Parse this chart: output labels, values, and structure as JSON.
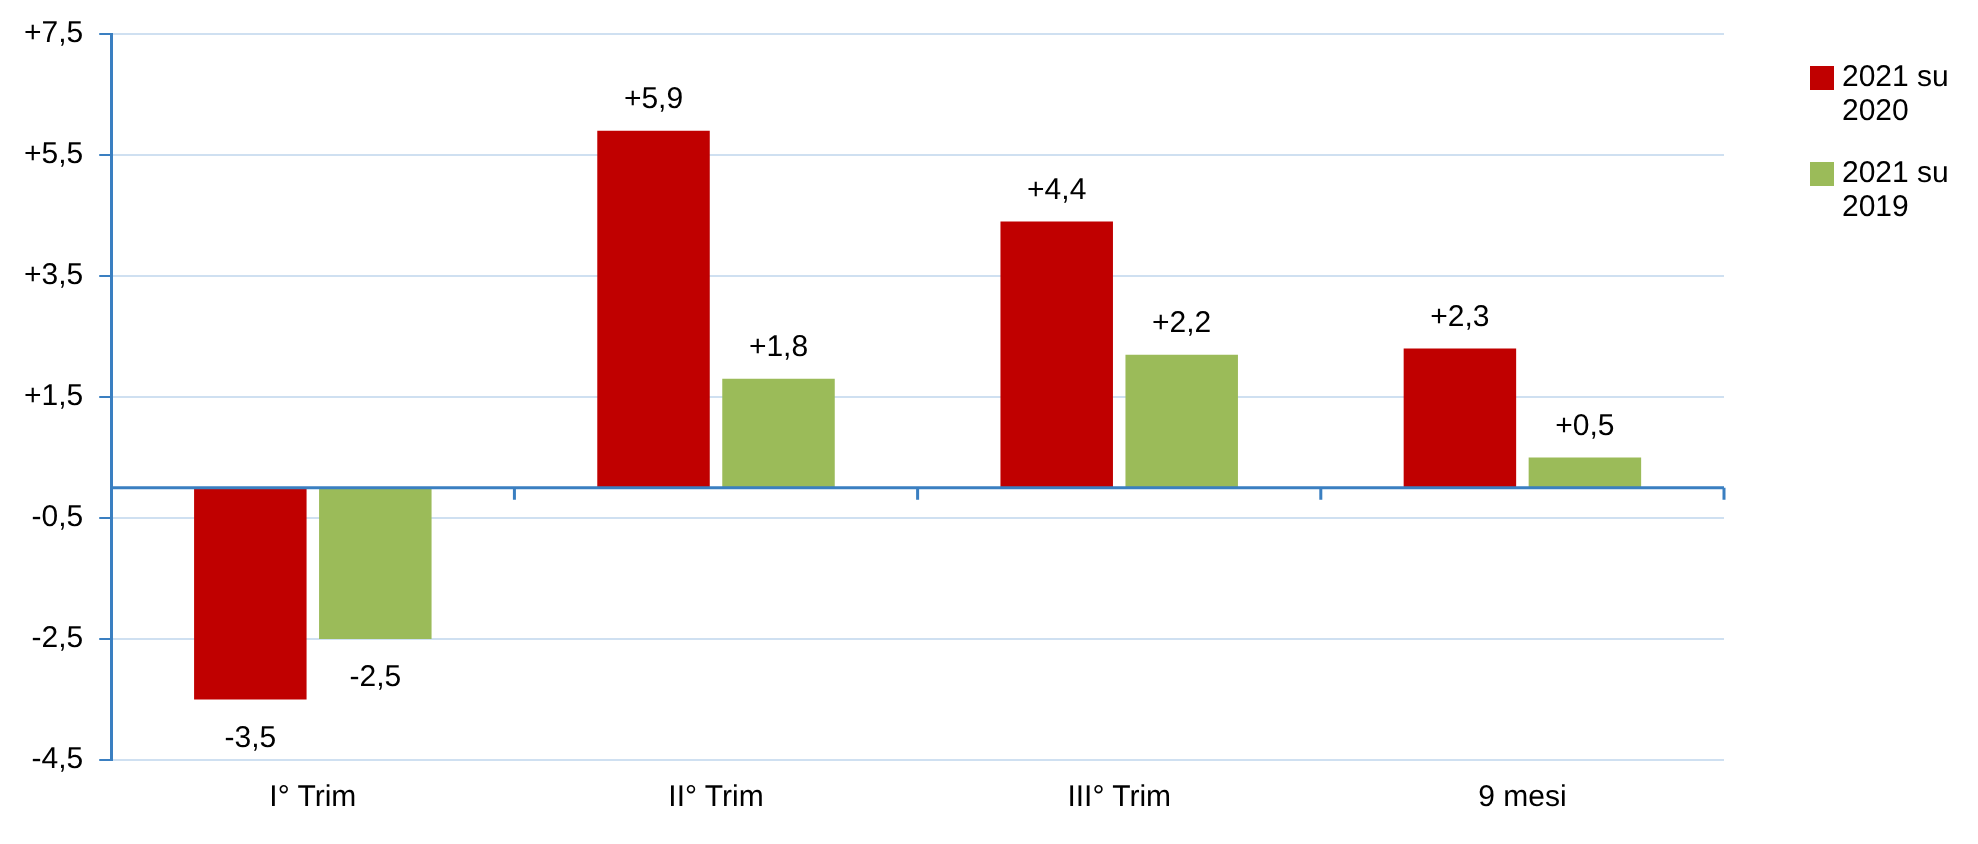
{
  "chart_data": {
    "type": "bar",
    "categories": [
      "I° Trim",
      "II° Trim",
      "III° Trim",
      "9 mesi"
    ],
    "series": [
      {
        "name": "2021 su 2020",
        "color": "#c00000",
        "values": [
          -3.5,
          5.9,
          4.4,
          2.3
        ],
        "value_labels": [
          "-3,5",
          "+5,9",
          "+4,4",
          "+2,3"
        ]
      },
      {
        "name": "2021 su 2019",
        "color": "#9bbb59",
        "values": [
          -2.5,
          1.8,
          2.2,
          0.5
        ],
        "value_labels": [
          "-2,5",
          "+1,8",
          "+2,2",
          "+0,5"
        ]
      }
    ],
    "ylim": [
      -4.5,
      7.5
    ],
    "yticks": [
      {
        "value": -4.5,
        "label": "-4,5"
      },
      {
        "value": -2.5,
        "label": "-2,5"
      },
      {
        "value": -0.5,
        "label": "-0,5"
      },
      {
        "value": 1.5,
        "label": "+1,5"
      },
      {
        "value": 3.5,
        "label": "+3,5"
      },
      {
        "value": 5.5,
        "label": "+5,5"
      },
      {
        "value": 7.5,
        "label": "+7,5"
      }
    ],
    "ref_lines": [
      {
        "axis": "y",
        "value": 0,
        "color": "#3a7fc1"
      }
    ],
    "grid": "y",
    "legend": "right"
  }
}
